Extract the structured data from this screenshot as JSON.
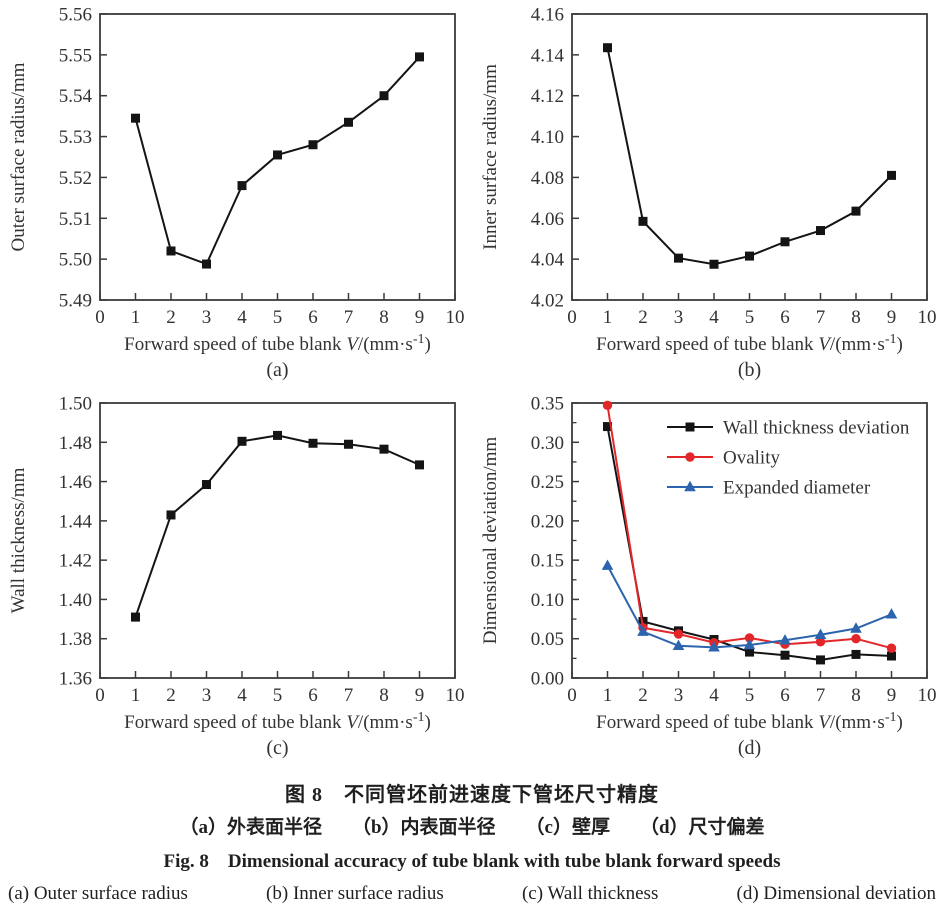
{
  "figure_caption": {
    "cn_title": "图 8　不同管坯前进速度下管坯尺寸精度",
    "cn_items": [
      "（a）外表面半径",
      "（b）内表面半径",
      "（c）壁厚",
      "（d）尺寸偏差"
    ],
    "en_title": "Fig. 8　Dimensional accuracy of tube blank with tube blank forward speeds",
    "en_items": [
      "(a)  Outer surface radius",
      "(b)  Inner surface radius",
      "(c)  Wall thickness",
      "(d)  Dimensional deviation"
    ]
  },
  "axis_label": {
    "pre": "Forward speed of tube blank ",
    "var": "V",
    "mid": "/(mm·s",
    "sup": "-1",
    "post": ")"
  },
  "colors": {
    "black": "#141414",
    "red": "#e2262a",
    "blue": "#2d64ae",
    "axis": "#3a3a3a"
  },
  "chart_data": [
    {
      "id": "a",
      "type": "line",
      "letter": "(a)",
      "ylabel": "Outer surface radius/mm",
      "xlabel": "Forward speed of tube blank V/(mm·s-1)",
      "xlim": [
        0,
        10
      ],
      "ylim": [
        5.49,
        5.56
      ],
      "xticks": [
        0,
        1,
        2,
        3,
        4,
        5,
        6,
        7,
        8,
        9,
        10
      ],
      "yticks": [
        "5.49",
        "5.50",
        "5.51",
        "5.52",
        "5.53",
        "5.54",
        "5.55",
        "5.56"
      ],
      "x": [
        1,
        2,
        3,
        4,
        5,
        6,
        7,
        8,
        9
      ],
      "series": [
        {
          "name": "Outer surface radius",
          "color": "#141414",
          "marker": "square",
          "values": [
            5.5345,
            5.502,
            5.4988,
            5.518,
            5.5255,
            5.528,
            5.5335,
            5.54,
            5.5495
          ]
        }
      ]
    },
    {
      "id": "b",
      "type": "line",
      "letter": "(b)",
      "ylabel": "Inner surface radius/mm",
      "xlabel": "Forward speed of tube blank V/(mm·s-1)",
      "xlim": [
        0,
        10
      ],
      "ylim": [
        4.02,
        4.16
      ],
      "xticks": [
        0,
        1,
        2,
        3,
        4,
        5,
        6,
        7,
        8,
        9,
        10
      ],
      "yticks": [
        "4.02",
        "4.04",
        "4.06",
        "4.08",
        "4.10",
        "4.12",
        "4.14",
        "4.16"
      ],
      "x": [
        1,
        2,
        3,
        4,
        5,
        6,
        7,
        8,
        9
      ],
      "series": [
        {
          "name": "Inner surface radius",
          "color": "#141414",
          "marker": "square",
          "values": [
            4.1435,
            4.0585,
            4.0405,
            4.0375,
            4.0415,
            4.0485,
            4.054,
            4.0635,
            4.081
          ]
        }
      ]
    },
    {
      "id": "c",
      "type": "line",
      "letter": "(c)",
      "ylabel": "Wall thickness/mm",
      "xlabel": "Forward speed of tube blank V/(mm·s-1)",
      "xlim": [
        0,
        10
      ],
      "ylim": [
        1.36,
        1.5
      ],
      "xticks": [
        0,
        1,
        2,
        3,
        4,
        5,
        6,
        7,
        8,
        9,
        10
      ],
      "yticks": [
        "1.36",
        "1.38",
        "1.40",
        "1.42",
        "1.44",
        "1.46",
        "1.48",
        "1.50"
      ],
      "x": [
        1,
        2,
        3,
        4,
        5,
        6,
        7,
        8,
        9
      ],
      "series": [
        {
          "name": "Wall thickness",
          "color": "#141414",
          "marker": "square",
          "values": [
            1.391,
            1.443,
            1.4585,
            1.4805,
            1.4835,
            1.4795,
            1.479,
            1.4765,
            1.4685
          ]
        }
      ]
    },
    {
      "id": "d",
      "type": "line",
      "letter": "(d)",
      "ylabel": "Dimensional deviation/mm",
      "xlabel": "Forward speed of tube blank V/(mm·s-1)",
      "xlim": [
        0,
        10
      ],
      "ylim": [
        0.0,
        0.35
      ],
      "xticks": [
        0,
        1,
        2,
        3,
        4,
        5,
        6,
        7,
        8,
        9,
        10
      ],
      "yticks": [
        "0.00",
        "0.05",
        "0.10",
        "0.15",
        "0.20",
        "0.25",
        "0.30",
        "0.35"
      ],
      "y_minor_step": 0.025,
      "legend": true,
      "legend_position": "top-right-inside",
      "x": [
        1,
        2,
        3,
        4,
        5,
        6,
        7,
        8,
        9
      ],
      "series": [
        {
          "name": "Wall thickness deviation",
          "color": "#141414",
          "marker": "square",
          "values": [
            0.32,
            0.072,
            0.06,
            0.049,
            0.033,
            0.029,
            0.023,
            0.03,
            0.028
          ]
        },
        {
          "name": "Ovality",
          "color": "#e2262a",
          "marker": "circle",
          "values": [
            0.347,
            0.064,
            0.056,
            0.045,
            0.051,
            0.043,
            0.046,
            0.05,
            0.038
          ]
        },
        {
          "name": "Expanded diameter",
          "color": "#2d64ae",
          "marker": "triangle",
          "values": [
            0.143,
            0.059,
            0.041,
            0.039,
            0.042,
            0.048,
            0.055,
            0.063,
            0.081
          ]
        }
      ]
    }
  ]
}
